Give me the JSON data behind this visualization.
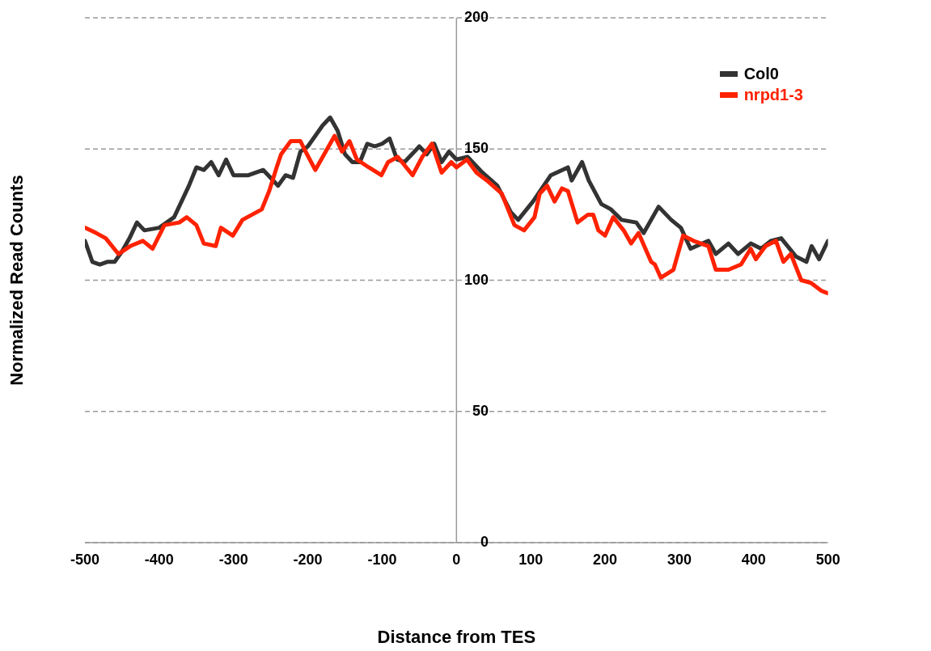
{
  "chart_data": {
    "type": "line",
    "xlabel": "Distance from TES",
    "ylabel": "Normalized Read Counts",
    "xlim": [
      -500,
      500
    ],
    "xticks": [
      -500,
      -400,
      -300,
      -200,
      -100,
      0,
      100,
      200,
      300,
      400,
      500
    ],
    "ylim": [
      0,
      200
    ],
    "yticks": [
      0,
      50,
      100,
      150,
      200
    ],
    "grid": "y",
    "legend": "top right",
    "marker": "none",
    "line_style": "solid",
    "series": [
      {
        "name": "Col0",
        "color": "#333333",
        "x": [
          -500,
          -490,
          -480,
          -470,
          -460,
          -450,
          -440,
          -430,
          -420,
          -400,
          -380,
          -370,
          -360,
          -350,
          -340,
          -330,
          -320,
          -310,
          -300,
          -280,
          -260,
          -250,
          -240,
          -230,
          -220,
          -210,
          -200,
          -190,
          -180,
          -170,
          -160,
          -150,
          -140,
          -130,
          -120,
          -110,
          -100,
          -90,
          -80,
          -70,
          -60,
          -50,
          -40,
          -30,
          -20,
          -10,
          0,
          15,
          35,
          55,
          73,
          83,
          103,
          127,
          150,
          155,
          169,
          178,
          195,
          208,
          222,
          242,
          252,
          272,
          289,
          302,
          315,
          339,
          349,
          366,
          379,
          396,
          410,
          423,
          437,
          457,
          471,
          478,
          488,
          500
        ],
        "values": [
          115,
          107,
          106,
          107,
          107,
          111,
          116,
          122,
          119,
          120,
          124,
          130,
          136,
          143,
          142,
          145,
          140,
          146,
          140,
          140,
          142,
          139,
          136,
          140,
          139,
          149,
          151,
          155,
          159,
          162,
          157,
          148,
          145,
          145,
          152,
          151,
          152,
          154,
          146,
          145,
          148,
          151,
          148,
          152,
          145,
          149,
          146,
          147,
          141,
          136,
          126,
          123,
          130,
          140,
          143,
          138,
          145,
          138,
          129,
          127,
          123,
          122,
          118,
          128,
          123,
          120,
          112,
          115,
          110,
          114,
          110,
          114,
          112,
          115,
          116,
          109,
          107,
          113,
          108,
          115
        ]
      },
      {
        "name": "nrpd1-3",
        "color": "#ff2200",
        "x": [
          -500,
          -485,
          -472,
          -455,
          -439,
          -422,
          -409,
          -393,
          -373,
          -363,
          -350,
          -340,
          -324,
          -317,
          -301,
          -288,
          -275,
          -262,
          -252,
          -242,
          -236,
          -223,
          -210,
          -203,
          -190,
          -180,
          -170,
          -164,
          -154,
          -144,
          -134,
          -118,
          -101,
          -92,
          -79,
          -59,
          -46,
          -33,
          -20,
          -7,
          0,
          14,
          27,
          41,
          61,
          78,
          91,
          105,
          112,
          122,
          132,
          142,
          150,
          163,
          177,
          184,
          191,
          200,
          211,
          225,
          235,
          245,
          262,
          267,
          275,
          292,
          305,
          319,
          329,
          339,
          349,
          366,
          383,
          396,
          403,
          416,
          430,
          440,
          450,
          464,
          477,
          491,
          500
        ],
        "values": [
          120,
          118,
          116,
          110,
          113,
          115,
          112,
          121,
          122,
          124,
          121,
          114,
          113,
          120,
          117,
          123,
          125,
          127,
          134,
          143,
          148,
          153,
          153,
          149,
          142,
          147,
          152,
          155,
          149,
          153,
          146,
          143,
          140,
          145,
          147,
          140,
          147,
          152,
          141,
          145,
          143,
          146,
          141,
          138,
          133,
          121,
          119,
          124,
          133,
          136,
          130,
          135,
          134,
          122,
          125,
          125,
          119,
          117,
          124,
          119,
          114,
          118,
          107,
          106,
          101,
          104,
          117,
          115,
          114,
          113,
          104,
          104,
          106,
          112,
          108,
          113,
          115,
          107,
          110,
          100,
          99,
          96,
          95
        ]
      }
    ]
  }
}
